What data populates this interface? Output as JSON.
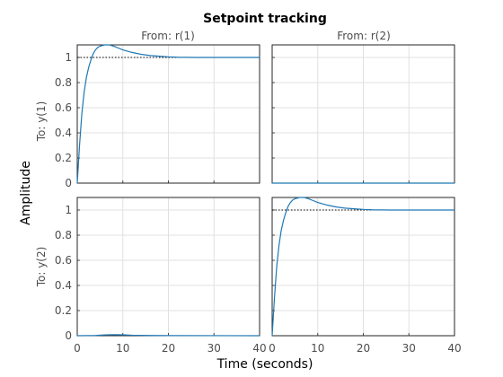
{
  "chart_data": {
    "type": "line",
    "title": "Setpoint tracking",
    "xlabel": "Time (seconds)",
    "ylabel": "Amplitude",
    "xlim": [
      0,
      40
    ],
    "ylim": [
      0,
      1.1
    ],
    "x_ticks": [
      0,
      10,
      20,
      30,
      40
    ],
    "y_ticks": [
      0,
      0.2,
      0.4,
      0.6,
      0.8,
      1
    ],
    "x_tick_labels": [
      "0",
      "10",
      "20",
      "30",
      "40"
    ],
    "y_tick_labels": [
      "0",
      "0.2",
      "0.4",
      "0.6",
      "0.8",
      "1"
    ],
    "grid": true,
    "column_labels": [
      "From: r(1)",
      "From: r(2)"
    ],
    "row_labels": [
      "To: y(1)",
      "To: y(2)"
    ],
    "line_color": "#1f77b4",
    "reference_color": "#000000",
    "panels": [
      {
        "row": 0,
        "col": 0,
        "reference": 1,
        "points": [
          [
            0,
            0
          ],
          [
            0.5,
            0.3
          ],
          [
            1,
            0.55
          ],
          [
            1.5,
            0.72
          ],
          [
            2,
            0.84
          ],
          [
            2.5,
            0.92
          ],
          [
            3,
            0.98
          ],
          [
            3.5,
            1.03
          ],
          [
            4,
            1.06
          ],
          [
            4.5,
            1.08
          ],
          [
            5,
            1.09
          ],
          [
            6,
            1.1
          ],
          [
            7,
            1.1
          ],
          [
            8,
            1.09
          ],
          [
            9,
            1.075
          ],
          [
            10,
            1.06
          ],
          [
            12,
            1.04
          ],
          [
            14,
            1.025
          ],
          [
            16,
            1.015
          ],
          [
            18,
            1.01
          ],
          [
            20,
            1.005
          ],
          [
            22,
            1.002
          ],
          [
            24,
            1.001
          ],
          [
            26,
            1.0
          ],
          [
            30,
            1.0
          ],
          [
            40,
            1.0
          ]
        ]
      },
      {
        "row": 0,
        "col": 1,
        "reference": null,
        "points": [
          [
            0,
            0
          ],
          [
            40,
            0
          ]
        ]
      },
      {
        "row": 1,
        "col": 0,
        "reference": null,
        "points": [
          [
            0,
            0
          ],
          [
            4,
            0.002
          ],
          [
            6,
            0.006
          ],
          [
            8,
            0.008
          ],
          [
            10,
            0.007
          ],
          [
            12,
            0.004
          ],
          [
            16,
            0.002
          ],
          [
            20,
            0.001
          ],
          [
            40,
            0
          ]
        ]
      },
      {
        "row": 1,
        "col": 1,
        "reference": 1,
        "points": [
          [
            0,
            0
          ],
          [
            0.5,
            0.3
          ],
          [
            1,
            0.55
          ],
          [
            1.5,
            0.72
          ],
          [
            2,
            0.84
          ],
          [
            2.5,
            0.92
          ],
          [
            3,
            0.98
          ],
          [
            3.5,
            1.03
          ],
          [
            4,
            1.06
          ],
          [
            4.5,
            1.08
          ],
          [
            5,
            1.09
          ],
          [
            6,
            1.1
          ],
          [
            7,
            1.1
          ],
          [
            8,
            1.09
          ],
          [
            9,
            1.075
          ],
          [
            10,
            1.06
          ],
          [
            12,
            1.04
          ],
          [
            14,
            1.025
          ],
          [
            16,
            1.015
          ],
          [
            18,
            1.01
          ],
          [
            20,
            1.005
          ],
          [
            22,
            1.002
          ],
          [
            24,
            1.001
          ],
          [
            26,
            1.0
          ],
          [
            30,
            1.0
          ],
          [
            40,
            1.0
          ]
        ]
      }
    ]
  }
}
